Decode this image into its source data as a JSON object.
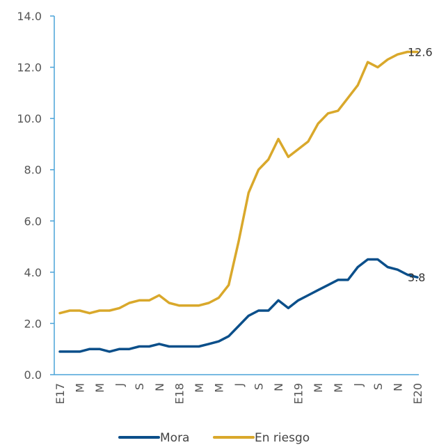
{
  "chart_data": {
    "type": "line",
    "title": "",
    "xlabel": "",
    "ylabel": "",
    "ylim": [
      0,
      14
    ],
    "yticks": [
      "0.0",
      "2.0",
      "4.0",
      "6.0",
      "8.0",
      "10.0",
      "12.0",
      "14.0"
    ],
    "xtick_labels": [
      "E17",
      "M",
      "M",
      "J",
      "S",
      "N",
      "E18",
      "M",
      "M",
      "J",
      "S",
      "N",
      "E19",
      "M",
      "M",
      "J",
      "S",
      "N",
      "E20"
    ],
    "x": [
      "E17",
      "F17",
      "M17",
      "A17",
      "M17",
      "J17",
      "J17",
      "A17",
      "S17",
      "O17",
      "N17",
      "D17",
      "E18",
      "F18",
      "M18",
      "A18",
      "M18",
      "J18",
      "J18",
      "A18",
      "S18",
      "O18",
      "N18",
      "D18",
      "E19",
      "F19",
      "M19",
      "A19",
      "M19",
      "J19",
      "J19",
      "A19",
      "S19",
      "O19",
      "N19",
      "D19",
      "E20"
    ],
    "series": [
      {
        "name": "Mora",
        "color": "#0b4f8a",
        "values": [
          0.9,
          0.9,
          0.9,
          1.0,
          1.0,
          0.9,
          1.0,
          1.0,
          1.1,
          1.1,
          1.2,
          1.1,
          1.1,
          1.1,
          1.1,
          1.2,
          1.3,
          1.5,
          1.9,
          2.3,
          2.5,
          2.5,
          2.9,
          2.6,
          2.9,
          3.1,
          3.3,
          3.5,
          3.7,
          3.7,
          4.2,
          4.5,
          4.5,
          4.2,
          4.1,
          3.9,
          3.8
        ],
        "end_label": "3.8"
      },
      {
        "name": "En riesgo",
        "color": "#d9a82b",
        "values": [
          2.4,
          2.5,
          2.5,
          2.4,
          2.5,
          2.5,
          2.6,
          2.8,
          2.9,
          2.9,
          3.1,
          2.8,
          2.7,
          2.7,
          2.7,
          2.8,
          3.0,
          3.5,
          5.2,
          7.1,
          8.0,
          8.4,
          9.2,
          8.5,
          8.8,
          9.1,
          9.8,
          10.2,
          10.3,
          10.8,
          11.3,
          12.2,
          12.0,
          12.3,
          12.5,
          12.6,
          12.6
        ],
        "end_label": "12.6"
      }
    ],
    "legend_position": "bottom",
    "grid": false
  }
}
